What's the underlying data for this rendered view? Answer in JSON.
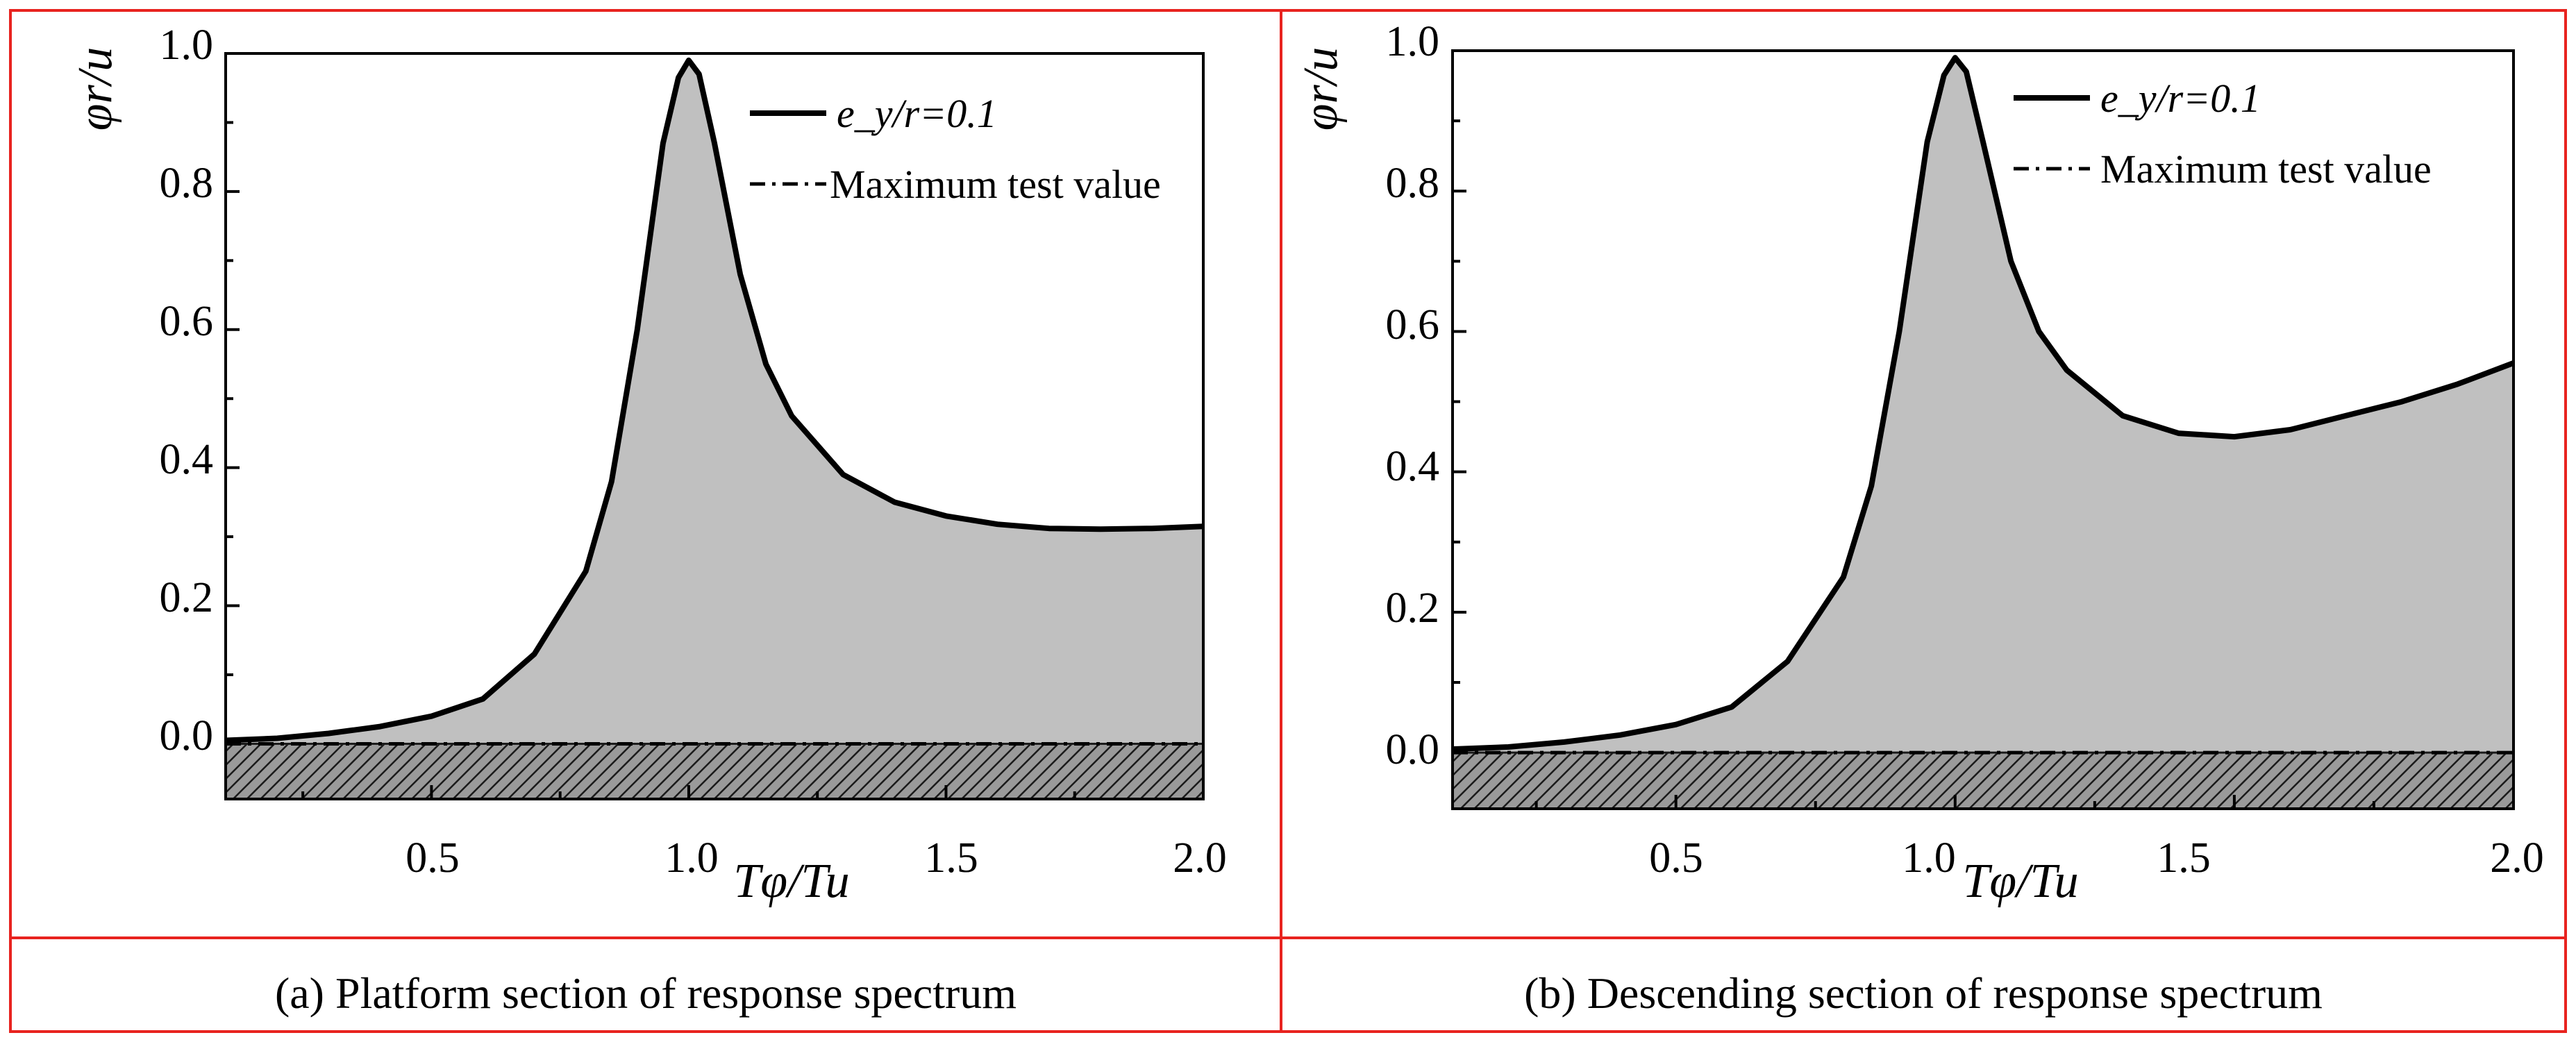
{
  "figure": {
    "panels": [
      {
        "caption": "(a) Platform section of response spectrum"
      },
      {
        "caption": "(b) Descending section of response spectrum"
      }
    ]
  },
  "chart_data": [
    {
      "type": "area",
      "panel": "a",
      "caption": "(a) Platform section of response spectrum",
      "xlabel": "Tφ/Tu",
      "ylabel": "φr/u",
      "xlim": [
        0.1,
        2.0
      ],
      "ylim": [
        -0.08,
        1.0
      ],
      "xticks": [
        "0.5",
        "1.0",
        "1.5",
        "2.0"
      ],
      "yticks": [
        "0.0",
        "0.2",
        "0.4",
        "0.6",
        "0.8",
        "1.0"
      ],
      "legend": {
        "position": "top-right",
        "entries": [
          "e_y/r=0.1",
          "Maximum test value"
        ]
      },
      "series": [
        {
          "name": "e_y/r=0.1",
          "style": "solid",
          "fill": "#c0c0c0",
          "x": [
            0.1,
            0.2,
            0.3,
            0.4,
            0.5,
            0.6,
            0.7,
            0.8,
            0.85,
            0.9,
            0.95,
            0.98,
            1.0,
            1.02,
            1.05,
            1.1,
            1.15,
            1.2,
            1.3,
            1.4,
            1.5,
            1.6,
            1.7,
            1.8,
            1.9,
            2.0
          ],
          "y": [
            0.005,
            0.008,
            0.015,
            0.025,
            0.04,
            0.065,
            0.13,
            0.25,
            0.38,
            0.6,
            0.87,
            0.965,
            0.99,
            0.97,
            0.87,
            0.68,
            0.55,
            0.475,
            0.39,
            0.35,
            0.33,
            0.318,
            0.312,
            0.311,
            0.312,
            0.315
          ]
        },
        {
          "name": "Maximum test value",
          "style": "dash-dot",
          "hatched_region": [
            -0.08,
            0.0
          ],
          "x": [
            0.1,
            2.0
          ],
          "y": [
            0.0,
            0.0
          ]
        }
      ]
    },
    {
      "type": "area",
      "panel": "b",
      "caption": "(b) Descending section of response spectrum",
      "xlabel": "Tφ/Tu",
      "ylabel": "φr/u",
      "xlim": [
        0.1,
        2.0
      ],
      "ylim": [
        -0.08,
        1.0
      ],
      "xticks": [
        "0.5",
        "1.0",
        "1.5",
        "2.0"
      ],
      "yticks": [
        "0.0",
        "0.2",
        "0.4",
        "0.6",
        "0.8",
        "1.0"
      ],
      "legend": {
        "position": "top-right",
        "entries": [
          "e_y/r=0.1",
          "Maximum test value"
        ]
      },
      "series": [
        {
          "name": "e_y/r=0.1",
          "style": "solid",
          "fill": "#c0c0c0",
          "x": [
            0.1,
            0.2,
            0.3,
            0.4,
            0.5,
            0.6,
            0.7,
            0.8,
            0.85,
            0.9,
            0.95,
            0.98,
            1.0,
            1.02,
            1.05,
            1.1,
            1.15,
            1.2,
            1.3,
            1.4,
            1.5,
            1.6,
            1.7,
            1.8,
            1.9,
            2.0
          ],
          "y": [
            0.005,
            0.008,
            0.015,
            0.025,
            0.04,
            0.065,
            0.13,
            0.25,
            0.38,
            0.6,
            0.87,
            0.965,
            0.99,
            0.97,
            0.87,
            0.7,
            0.6,
            0.545,
            0.48,
            0.455,
            0.45,
            0.46,
            0.48,
            0.5,
            0.525,
            0.555
          ]
        },
        {
          "name": "Maximum test value",
          "style": "dash-dot",
          "hatched_region": [
            -0.08,
            0.0
          ],
          "x": [
            0.1,
            2.0
          ],
          "y": [
            0.0,
            0.0
          ]
        }
      ]
    }
  ],
  "colors": {
    "frame": "#e8231f",
    "curve": "#000000",
    "area_fill": "#c0c0c0",
    "hatch_background": "#9a9a9a",
    "hatch_line": "#1a1a1a"
  }
}
